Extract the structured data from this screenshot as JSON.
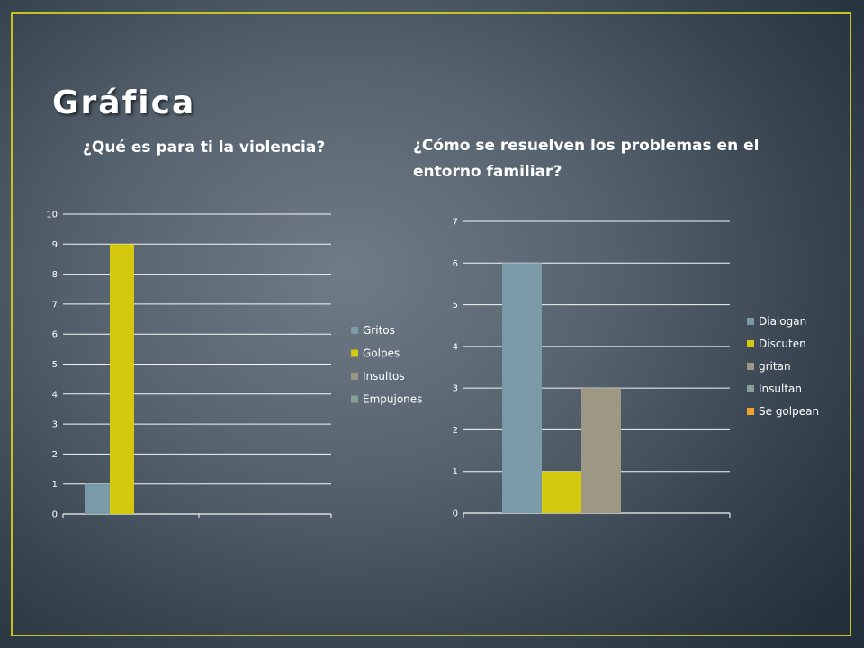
{
  "slide": {
    "title": "Gráfica",
    "accent_color": "#c8c31a"
  },
  "chart_data": [
    {
      "type": "bar",
      "title": "¿Qué es para ti la violencia?",
      "categories": [
        ""
      ],
      "series": [
        {
          "name": "Gritos",
          "values": [
            1
          ],
          "color": "#7a9aa7"
        },
        {
          "name": "Golpes",
          "values": [
            9
          ],
          "color": "#d4c90e"
        },
        {
          "name": "Insultos",
          "values": [
            0
          ],
          "color": "#9c9883"
        },
        {
          "name": "Empujones",
          "values": [
            0
          ],
          "color": "#86a095"
        }
      ],
      "ylim": [
        0,
        10
      ],
      "yticks": [
        0,
        1,
        2,
        3,
        4,
        5,
        6,
        7,
        8,
        9,
        10
      ],
      "grid": true,
      "legend": "right"
    },
    {
      "type": "bar",
      "title": "¿Cómo se resuelven los problemas en el entorno familiar?",
      "categories": [
        ""
      ],
      "series": [
        {
          "name": "Dialogan",
          "values": [
            6
          ],
          "color": "#7a9aa7"
        },
        {
          "name": "Discuten",
          "values": [
            1
          ],
          "color": "#d4c90e"
        },
        {
          "name": "gritan",
          "values": [
            3
          ],
          "color": "#9c9883"
        },
        {
          "name": "Insultan",
          "values": [
            0
          ],
          "color": "#86a095"
        },
        {
          "name": "Se golpean",
          "values": [
            0
          ],
          "color": "#f0a22e"
        }
      ],
      "ylim": [
        0,
        7
      ],
      "yticks": [
        0,
        1,
        2,
        3,
        4,
        5,
        6,
        7
      ],
      "grid": true,
      "legend": "right"
    }
  ]
}
